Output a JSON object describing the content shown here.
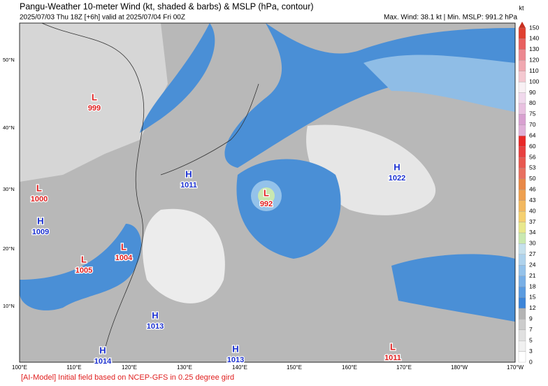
{
  "header": {
    "title": "Pangu-Weather 10-meter Wind (kt, shaded & barbs) & MSLP (hPa, contour)",
    "subtitle": "2025/07/03 Thu 18Z [+6h] valid at 2025/07/04 Fri 00Z",
    "info": "Max. Wind: 38.1 kt | Min. MSLP: 991.2 hPa"
  },
  "map": {
    "lon_labels": [
      "100°E",
      "110°E",
      "120°E",
      "130°E",
      "140°E",
      "150°E",
      "160°E",
      "170°E",
      "180°W",
      "170°W"
    ],
    "lat_labels": [
      "50°N",
      "40°N",
      "30°N",
      "20°N",
      "10°N"
    ],
    "centers": [
      {
        "type": "L",
        "value": 999
      },
      {
        "type": "L",
        "value": 1000
      },
      {
        "type": "H",
        "value": 1009
      },
      {
        "type": "L",
        "value": 1005
      },
      {
        "type": "L",
        "value": 1004
      },
      {
        "type": "H",
        "value": 1011
      },
      {
        "type": "L",
        "value": 992
      },
      {
        "type": "H",
        "value": 1022
      },
      {
        "type": "H",
        "value": 1013
      },
      {
        "type": "H",
        "value": 1014
      },
      {
        "type": "H",
        "value": 1013
      },
      {
        "type": "L",
        "value": 1011
      }
    ]
  },
  "colorbar": {
    "unit": "kt",
    "levels": [
      0,
      3,
      5,
      7,
      9,
      12,
      15,
      18,
      21,
      24,
      27,
      30,
      34,
      37,
      40,
      43,
      46,
      50,
      53,
      56,
      60,
      64,
      70,
      75,
      80,
      90,
      100,
      110,
      120,
      130,
      140,
      150
    ],
    "colors": [
      "#ffffff",
      "#f0f0f0",
      "#e0e0e0",
      "#cccccc",
      "#b4b4b4",
      "#3d85d8",
      "#5a9be0",
      "#78afe6",
      "#94c2ea",
      "#aed2ec",
      "#c5e0ec",
      "#c9e8b0",
      "#e8e88c",
      "#f5d070",
      "#f2b860",
      "#eea050",
      "#e88848",
      "#e87060",
      "#e85850",
      "#e84040",
      "#e82828",
      "#e0b0d8",
      "#d8a0d0",
      "#e8c0e0",
      "#f0d8ec",
      "#f8f0f4",
      "#f4c8d0",
      "#f0a8b0",
      "#ec8890",
      "#e86060",
      "#e04030"
    ],
    "top_color": "#c83020"
  },
  "footer": "[AI-Model] Initial field based on NCEP-GFS in 0.25 degree gird"
}
